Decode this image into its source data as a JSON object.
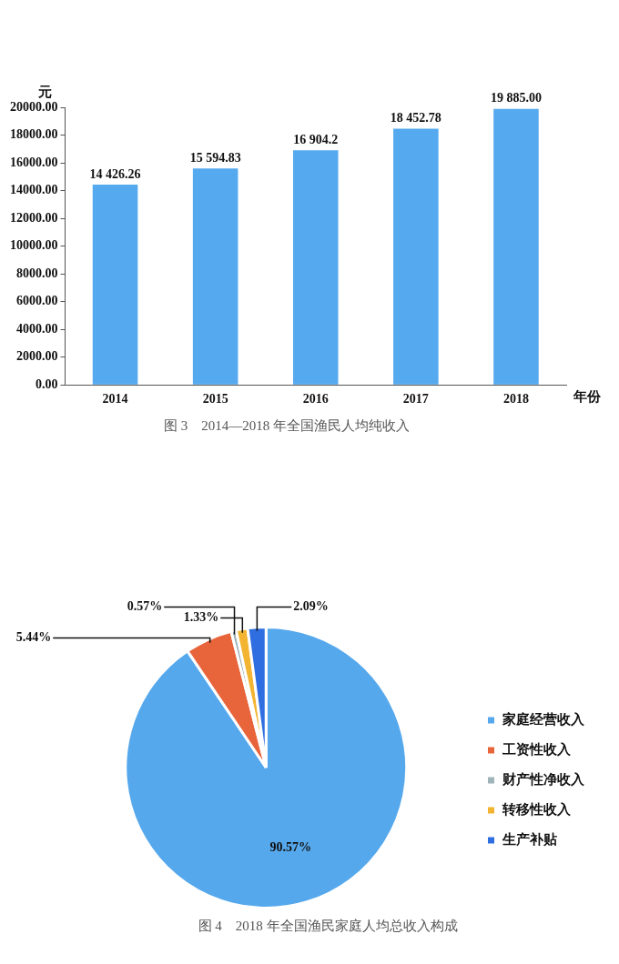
{
  "chart_data": [
    {
      "type": "bar",
      "title": "图 3　2014—2018 年全国渔民人均纯收入",
      "xlabel": "年份",
      "ylabel": "元",
      "categories": [
        "2014",
        "2015",
        "2016",
        "2017",
        "2018"
      ],
      "values": [
        14426.26,
        15594.83,
        16904.2,
        18452.78,
        19885.0
      ],
      "value_labels": [
        "14 426.26",
        "15 594.83",
        "16 904.2",
        "18 452.78",
        "19 885.00"
      ],
      "color": "#55a9ee",
      "ylim": [
        0,
        20000
      ],
      "yticks": [
        {
          "value": 0,
          "label": "0.00"
        },
        {
          "value": 2000,
          "label": "2000.00"
        },
        {
          "value": 4000,
          "label": "4000.00"
        },
        {
          "value": 6000,
          "label": "6000.00"
        },
        {
          "value": 8000,
          "label": "8000.00"
        },
        {
          "value": 10000,
          "label": "10000.00"
        },
        {
          "value": 12000,
          "label": "12000.00"
        },
        {
          "value": 14000,
          "label": "14000.00"
        },
        {
          "value": 16000,
          "label": "16000.00"
        },
        {
          "value": 18000,
          "label": "18000.00"
        },
        {
          "value": 20000,
          "label": "20000.00"
        }
      ],
      "grid": false,
      "legend": false
    },
    {
      "type": "pie",
      "title": "图 4　2018 年全国渔民家庭人均总收入构成",
      "categories": [
        "家庭经营收入",
        "工资性收入",
        "财产性净收入",
        "转移性收入",
        "生产补贴"
      ],
      "values": [
        90.57,
        5.44,
        0.57,
        1.33,
        2.09
      ],
      "value_labels": [
        "90.57%",
        "5.44%",
        "0.57%",
        "1.33%",
        "2.09%"
      ],
      "colors": [
        "#56a8ec",
        "#e8643a",
        "#9fb3b8",
        "#f2b431",
        "#2f6ee0"
      ],
      "legend": "right"
    }
  ]
}
